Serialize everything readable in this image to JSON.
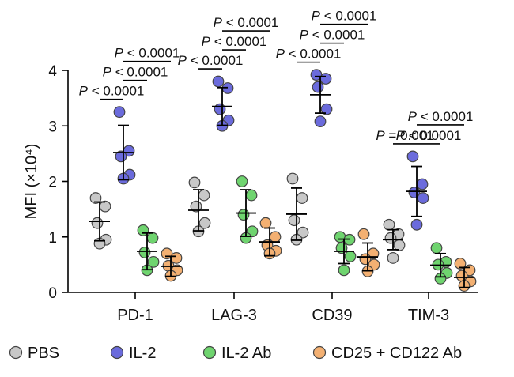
{
  "chart_data": {
    "type": "scatter",
    "ylabel": "MFI (×10⁴)",
    "ylim": [
      0,
      4
    ],
    "yticks": [
      0,
      1,
      2,
      3,
      4
    ],
    "categories": [
      "PD-1",
      "LAG-3",
      "CD39",
      "TIM-3"
    ],
    "series": [
      {
        "name": "PBS",
        "color": "#c8c8c8",
        "points": [
          [
            1.7,
            1.55,
            1.25,
            0.95,
            0.88
          ],
          [
            1.98,
            1.75,
            1.55,
            1.25,
            1.1
          ],
          [
            2.05,
            1.7,
            1.3,
            1.08,
            0.95
          ],
          [
            1.22,
            1.05,
            0.98,
            0.85,
            0.62
          ]
        ],
        "mean": [
          1.28,
          1.48,
          1.41,
          0.95
        ],
        "sd": [
          0.35,
          0.37,
          0.47,
          0.18
        ]
      },
      {
        "name": "IL-2",
        "color": "#6b6bdc",
        "points": [
          [
            3.25,
            2.55,
            2.45,
            2.12,
            2.05
          ],
          [
            3.8,
            3.68,
            3.3,
            3.1,
            3.0
          ],
          [
            3.92,
            3.85,
            3.7,
            3.3,
            3.08
          ],
          [
            2.45,
            1.95,
            1.8,
            1.7,
            1.22
          ]
        ],
        "mean": [
          2.52,
          3.35,
          3.56,
          1.82
        ],
        "sd": [
          0.49,
          0.34,
          0.33,
          0.45
        ]
      },
      {
        "name": "IL-2 Ab",
        "color": "#6fd46f",
        "points": [
          [
            1.12,
            0.98,
            0.72,
            0.55,
            0.4
          ],
          [
            2.0,
            1.75,
            1.4,
            1.1,
            0.98
          ],
          [
            1.0,
            0.95,
            0.8,
            0.65,
            0.4
          ],
          [
            0.8,
            0.55,
            0.5,
            0.35,
            0.25
          ]
        ],
        "mean": [
          0.74,
          1.43,
          0.74,
          0.49
        ],
        "sd": [
          0.33,
          0.42,
          0.22,
          0.21
        ]
      },
      {
        "name": "CD25 + CD122 Ab",
        "color": "#f3b072",
        "points": [
          [
            0.7,
            0.62,
            0.48,
            0.4,
            0.3
          ],
          [
            1.25,
            1.0,
            0.85,
            0.75,
            0.7
          ],
          [
            1.05,
            0.7,
            0.6,
            0.5,
            0.38
          ],
          [
            0.52,
            0.4,
            0.3,
            0.2,
            0.12
          ]
        ],
        "mean": [
          0.47,
          0.91,
          0.64,
          0.27
        ],
        "sd": [
          0.18,
          0.25,
          0.25,
          0.18
        ]
      }
    ],
    "annotations": [
      {
        "group": 0,
        "from": 0,
        "to": 1,
        "p_prefix": "P",
        "p_text": " < 0.0001",
        "level": 0
      },
      {
        "group": 0,
        "from": 1,
        "to": 2,
        "p_prefix": "P",
        "p_text": " < 0.0001",
        "level": 1
      },
      {
        "group": 0,
        "from": 1,
        "to": 3,
        "p_prefix": "P",
        "p_text": " < 0.0001",
        "level": 2
      },
      {
        "group": 1,
        "from": 0,
        "to": 1,
        "p_prefix": "P",
        "p_text": " < 0.0001",
        "level": 0
      },
      {
        "group": 1,
        "from": 1,
        "to": 2,
        "p_prefix": "P",
        "p_text": " < 0.0001",
        "level": 1
      },
      {
        "group": 1,
        "from": 1,
        "to": 3,
        "p_prefix": "P",
        "p_text": " < 0.0001",
        "level": 2
      },
      {
        "group": 2,
        "from": 0,
        "to": 1,
        "p_prefix": "P",
        "p_text": " < 0.0001",
        "level": 0
      },
      {
        "group": 2,
        "from": 1,
        "to": 2,
        "p_prefix": "P",
        "p_text": " < 0.0001",
        "level": 1
      },
      {
        "group": 2,
        "from": 1,
        "to": 3,
        "p_prefix": "P",
        "p_text": " < 0.0001",
        "level": 2
      },
      {
        "group": 3,
        "from": 0,
        "to": 1,
        "p_prefix": "P",
        "p_text": " = 0.001",
        "level": 0
      },
      {
        "group": 3,
        "from": 1,
        "to": 2,
        "p_prefix": "P",
        "p_text": " < 0.0001",
        "level": 0
      },
      {
        "group": 3,
        "from": 1,
        "to": 3,
        "p_prefix": "P",
        "p_text": " < 0.0001",
        "level": 1
      }
    ],
    "legend": {
      "position": "bottom"
    },
    "grid": false
  }
}
